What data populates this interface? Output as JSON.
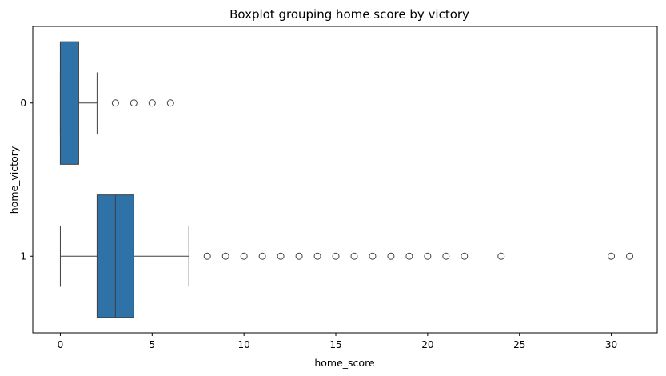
{
  "chart_data": {
    "type": "boxplot",
    "orientation": "horizontal",
    "title": "Boxplot grouping home score by victory",
    "xlabel": "home_score",
    "ylabel": "home_victory",
    "xlim": [
      -1.5,
      32.5
    ],
    "x_ticks": [
      0,
      5,
      10,
      15,
      20,
      25,
      30
    ],
    "categories": [
      "0",
      "1"
    ],
    "grid": false,
    "legend": "none",
    "box_color": "#2e72a8",
    "edge_color": "#3f3f3f",
    "series": [
      {
        "category": "0",
        "whisker_low": 0,
        "q1": 0,
        "median": 0,
        "q3": 1,
        "whisker_high": 2,
        "outliers": [
          3,
          4,
          5,
          6
        ]
      },
      {
        "category": "1",
        "whisker_low": 0,
        "q1": 2,
        "median": 3,
        "q3": 4,
        "whisker_high": 7,
        "outliers": [
          8,
          9,
          10,
          11,
          12,
          13,
          14,
          15,
          16,
          17,
          18,
          19,
          20,
          21,
          22,
          24,
          30,
          31
        ]
      }
    ]
  }
}
